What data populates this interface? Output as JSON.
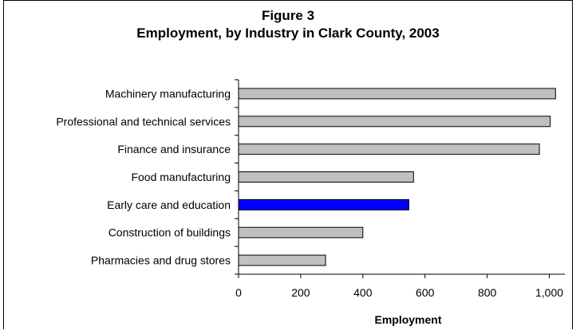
{
  "chart_data": {
    "type": "bar",
    "orientation": "horizontal",
    "title": "Figure 3",
    "subtitle": "Employment, by Industry in Clark County, 2003",
    "xlabel": "Employment",
    "ylabel": "",
    "categories": [
      "Machinery manufacturing",
      "Professional and technical services",
      "Finance and insurance",
      "Food manufacturing",
      "Early care and education",
      "Construction of buildings",
      "Pharmacies and drug stores"
    ],
    "values": [
      1020,
      1003,
      968,
      563,
      548,
      400,
      280
    ],
    "highlight_category": "Early care and education",
    "xlim": [
      0,
      1050
    ],
    "xticks": [
      0,
      200,
      400,
      600,
      800,
      1000
    ],
    "xtick_labels": [
      "0",
      "200",
      "400",
      "600",
      "800",
      "1,000"
    ],
    "grid": false,
    "legend": "none",
    "colors": {
      "default_bar": "#c0c0c0",
      "highlight_bar": "#0000ff",
      "bar_border": "#000000"
    }
  }
}
